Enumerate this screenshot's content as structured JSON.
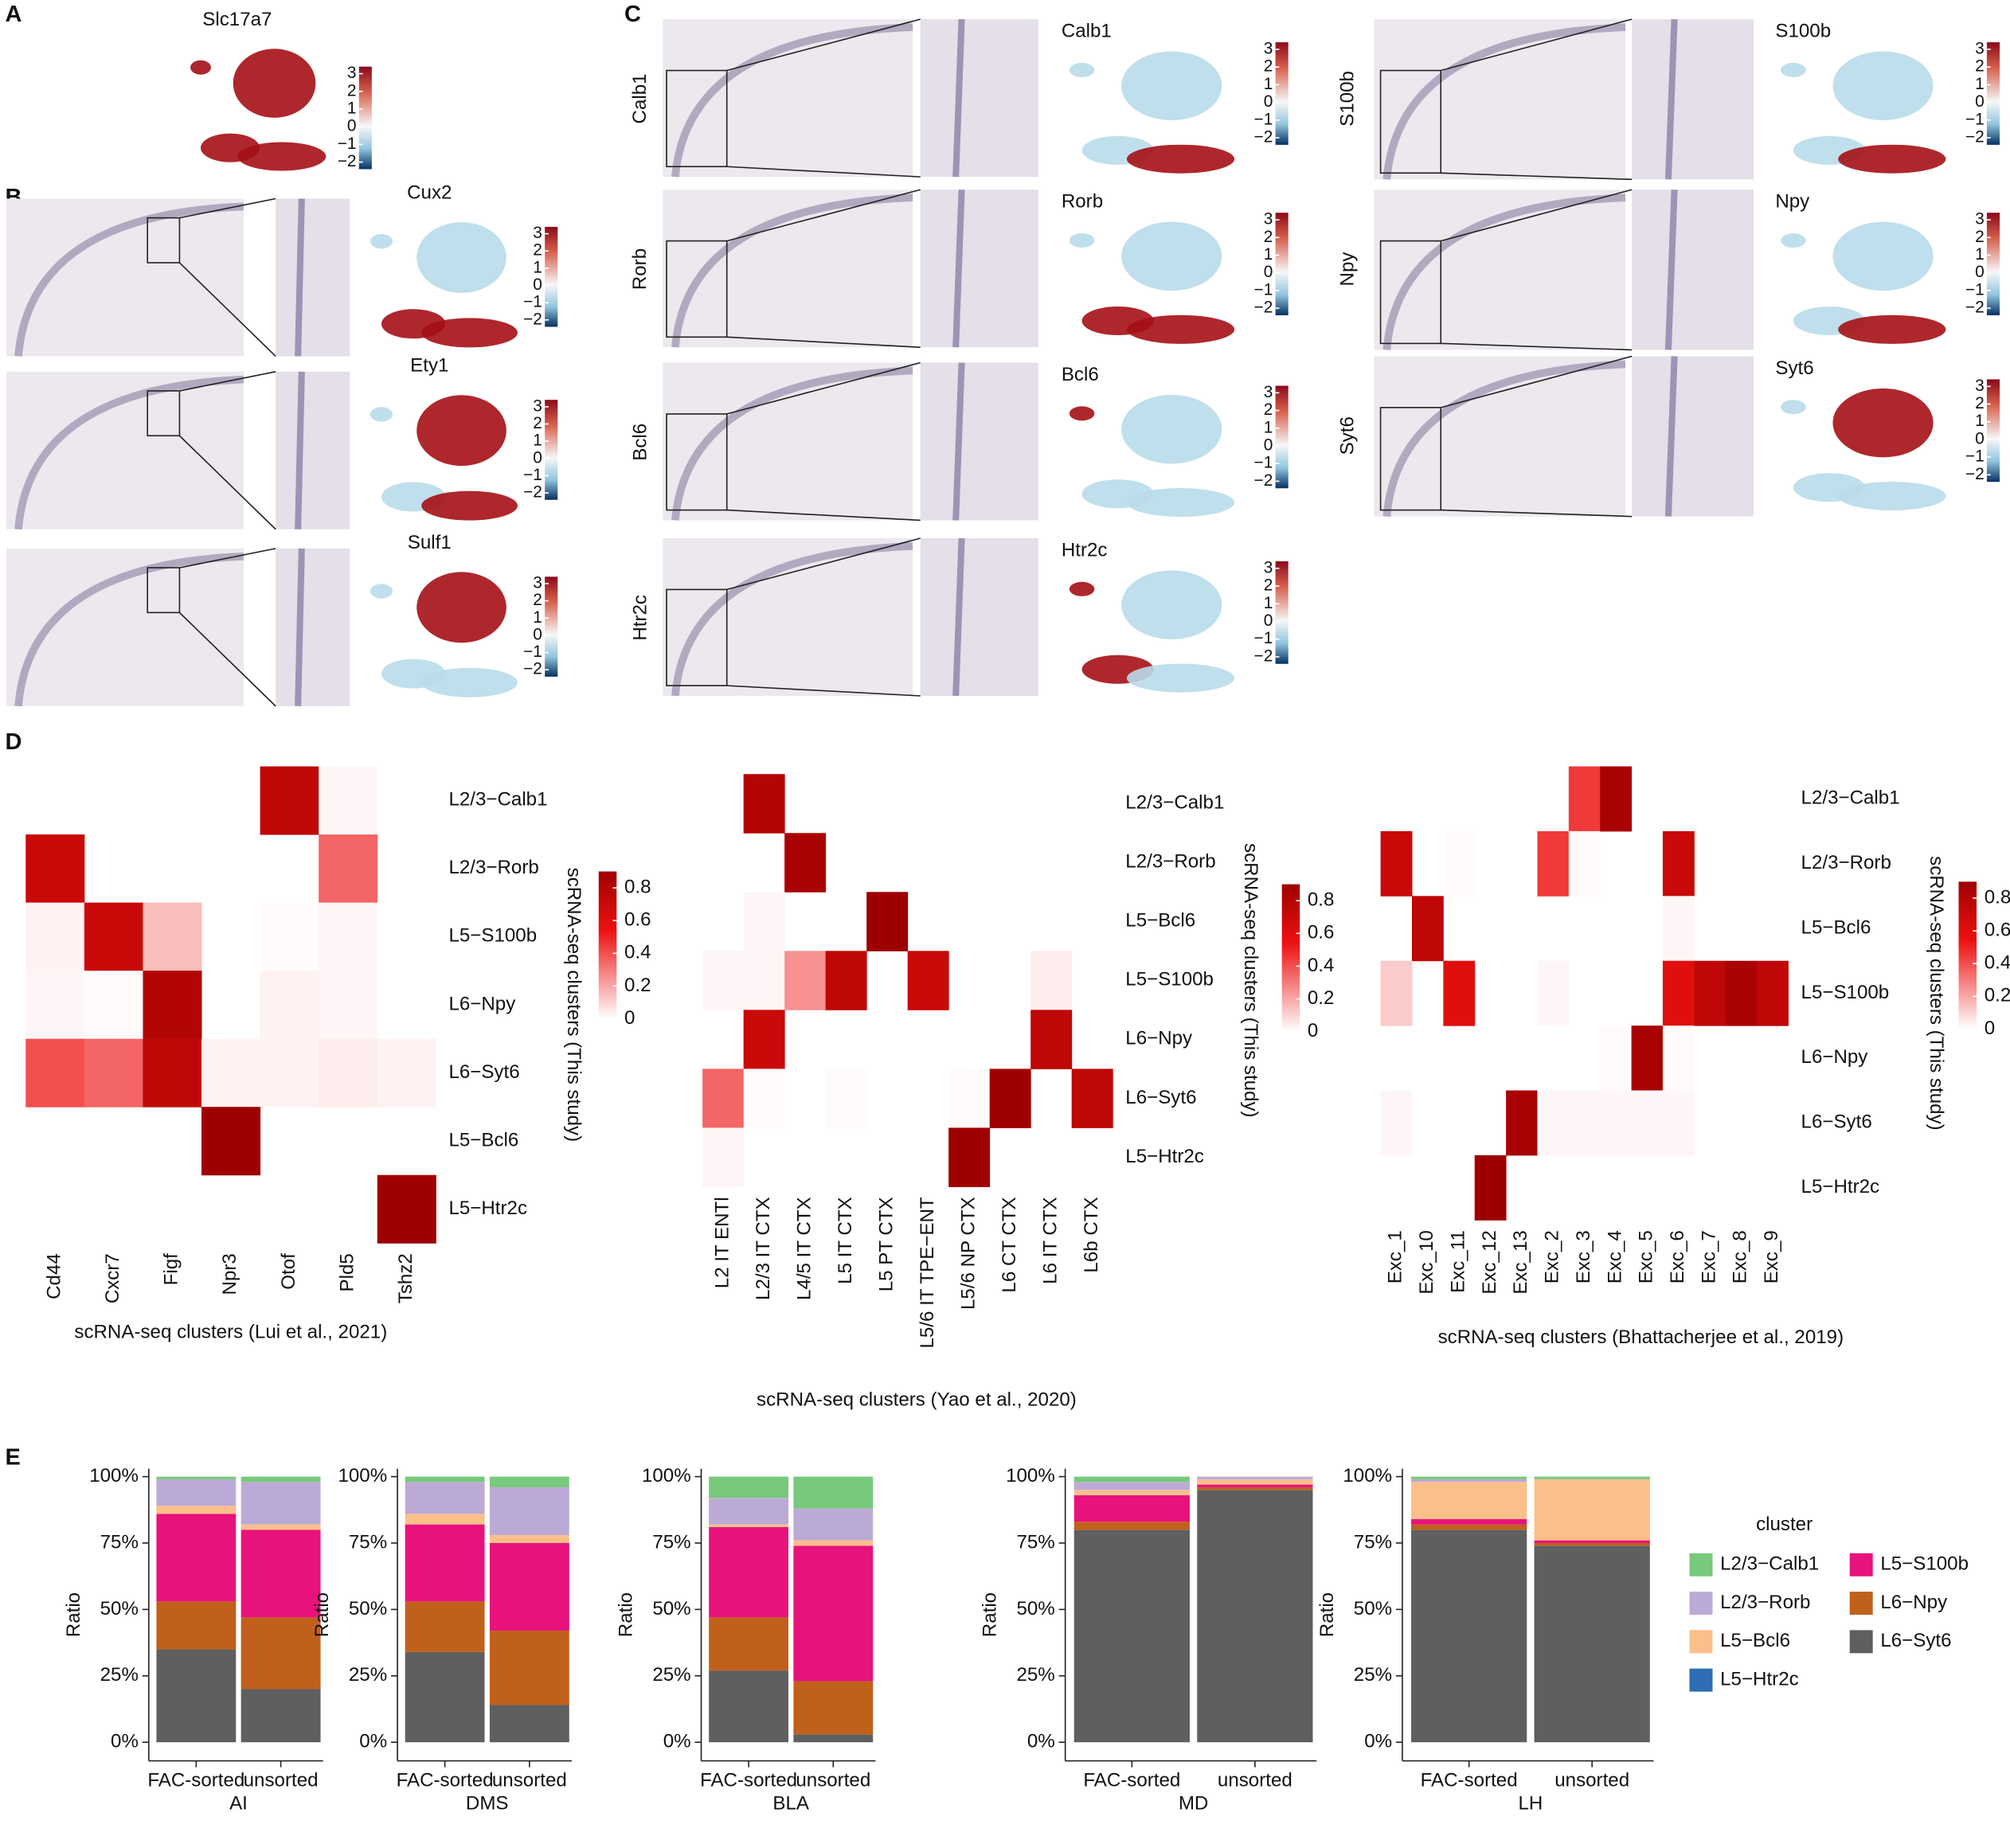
{
  "panel_labels": [
    "A",
    "B",
    "C",
    "D",
    "E"
  ],
  "umap_scale_ticks": [
    3,
    2,
    1,
    0,
    {
      "value": -1,
      "label": "−1"
    },
    {
      "value": -2,
      "label": "−2"
    }
  ],
  "umap_scale_lim": [
    -2.4,
    3.4
  ],
  "panel_a": {
    "genes": [
      "Slc17a7"
    ]
  },
  "panel_b": {
    "genes": [
      "Cux2",
      "Ety1",
      "Sulf1"
    ]
  },
  "panel_c": {
    "genes": [
      "Calb1",
      "Rorb",
      "Bcl6",
      "Htr2c",
      "S100b",
      "Npy",
      "Syt6"
    ]
  },
  "chart_data": [
    {
      "type": "heatmap",
      "x_label": "scRNA-seq clusters (Lui et al., 2021)",
      "y_label": "scRNA-seq clusters (This study)",
      "columns": [
        "Cd44",
        "Cxcr7",
        "Figf",
        "Npr3",
        "Otof",
        "Pld5",
        "Tshz2"
      ],
      "rows": [
        "L2/3−Calb1",
        "L2/3−Rorb",
        "L5−S100b",
        "L6−Npy",
        "L6−Syt6",
        "L5−Bcl6",
        "L5−Htr2c"
      ],
      "values": [
        [
          null,
          null,
          null,
          null,
          0.75,
          0.02,
          null
        ],
        [
          0.7,
          null,
          null,
          null,
          null,
          0.35,
          null
        ],
        [
          0.03,
          0.7,
          0.15,
          null,
          0.01,
          0.02,
          null
        ],
        [
          0.02,
          0.01,
          0.8,
          null,
          0.03,
          0.02,
          null
        ],
        [
          0.4,
          0.35,
          0.75,
          0.03,
          0.03,
          0.04,
          0.03
        ],
        [
          null,
          null,
          null,
          0.9,
          null,
          null,
          null
        ],
        [
          null,
          null,
          null,
          null,
          null,
          null,
          0.9
        ]
      ],
      "zlim": [
        0,
        0.9
      ],
      "colorbar_ticks": [
        0,
        0.2,
        0.4,
        0.6,
        0.8
      ]
    },
    {
      "type": "heatmap",
      "x_label": "scRNA-seq clusters (Yao et al., 2020)",
      "y_label": "scRNA-seq clusters (This study)",
      "columns": [
        "L2 IT ENTl",
        "L2/3 IT CTX",
        "L4/5 IT CTX",
        "L5 IT CTX",
        "L5 PT CTX",
        "L5/6 IT TPE−ENT",
        "L5/6 NP CTX",
        "L6 CT CTX",
        "L6 IT CTX",
        "L6b CTX"
      ],
      "rows": [
        "L2/3−Calb1",
        "L2/3−Rorb",
        "L5−Bcl6",
        "L5−S100b",
        "L6−Npy",
        "L6−Syt6",
        "L5−Htr2c"
      ],
      "values": [
        [
          null,
          0.8,
          null,
          null,
          null,
          null,
          null,
          null,
          null,
          null
        ],
        [
          null,
          null,
          0.85,
          null,
          null,
          null,
          null,
          null,
          null,
          null
        ],
        [
          null,
          0.02,
          null,
          null,
          0.9,
          null,
          null,
          null,
          null,
          null
        ],
        [
          0.02,
          0.02,
          0.25,
          0.75,
          null,
          0.7,
          null,
          null,
          0.04,
          null
        ],
        [
          null,
          0.7,
          null,
          null,
          null,
          null,
          null,
          null,
          0.75,
          null
        ],
        [
          0.35,
          0.01,
          null,
          0.01,
          null,
          null,
          0.01,
          0.9,
          null,
          0.75
        ],
        [
          0.02,
          null,
          null,
          null,
          null,
          null,
          0.9,
          null,
          null,
          null
        ]
      ],
      "zlim": [
        0,
        0.9
      ],
      "colorbar_ticks": [
        0,
        0.2,
        0.4,
        0.6,
        0.8
      ]
    },
    {
      "type": "heatmap",
      "x_label": "scRNA-seq clusters (Bhattacherjee et al., 2019)",
      "y_label": "scRNA-seq clusters (This study)",
      "columns": [
        "Exc_1",
        "Exc_10",
        "Exc_11",
        "Exc_12",
        "Exc_13",
        "Exc_2",
        "Exc_3",
        "Exc_4",
        "Exc_5",
        "Exc_6",
        "Exc_7",
        "Exc_8",
        "Exc_9"
      ],
      "rows": [
        "L2/3−Calb1",
        "L2/3−Rorb",
        "L5−Bcl6",
        "L5−S100b",
        "L6−Npy",
        "L6−Syt6",
        "L5−Htr2c"
      ],
      "values": [
        [
          null,
          null,
          null,
          null,
          null,
          null,
          0.45,
          0.85,
          null,
          null,
          null,
          null,
          null
        ],
        [
          0.7,
          null,
          0.01,
          null,
          null,
          0.45,
          0.01,
          null,
          null,
          0.7,
          null,
          null,
          null
        ],
        [
          null,
          0.75,
          null,
          null,
          null,
          null,
          null,
          null,
          null,
          0.02,
          null,
          null,
          null
        ],
        [
          0.12,
          null,
          0.6,
          null,
          null,
          0.02,
          null,
          null,
          null,
          0.6,
          0.75,
          0.85,
          0.75
        ],
        [
          null,
          null,
          null,
          null,
          null,
          null,
          null,
          0.01,
          0.85,
          0.01,
          null,
          null,
          null
        ],
        [
          0.02,
          null,
          null,
          null,
          0.85,
          0.02,
          0.02,
          0.02,
          0.02,
          0.02,
          null,
          null,
          null
        ],
        [
          null,
          null,
          null,
          0.9,
          null,
          null,
          null,
          null,
          null,
          null,
          null,
          null,
          null
        ]
      ],
      "zlim": [
        0,
        0.9
      ],
      "colorbar_ticks": [
        0,
        0.2,
        0.4,
        0.6,
        0.8
      ]
    },
    {
      "type": "stacked_bar",
      "x_label": "AI",
      "y_label": "Ratio",
      "categories": [
        "FAC-sorted",
        "unsorted"
      ],
      "ylim": [
        -0.07,
        1.03
      ],
      "yticks": [
        {
          "value": 0,
          "label": "0%"
        },
        {
          "value": 0.25,
          "label": "25%"
        },
        {
          "value": 0.5,
          "label": "50%"
        },
        {
          "value": 0.75,
          "label": "75%"
        },
        {
          "value": 1,
          "label": "100%"
        }
      ],
      "legend_title": "cluster",
      "series": [
        {
          "name": "L2/3−Calb1",
          "color": "#77c97b",
          "values": [
            0.01,
            0.02
          ]
        },
        {
          "name": "L2/3−Rorb",
          "color": "#bcaad6",
          "values": [
            0.1,
            0.16
          ]
        },
        {
          "name": "L5−Bcl6",
          "color": "#fbbf8a",
          "values": [
            0.03,
            0.02
          ]
        },
        {
          "name": "L5−Htr2c",
          "color": "#2e6db4",
          "values": [
            0,
            0
          ]
        },
        {
          "name": "L5−S100b",
          "color": "#e8127c",
          "values": [
            0.33,
            0.33
          ]
        },
        {
          "name": "L6−Npy",
          "color": "#c0601b",
          "values": [
            0.18,
            0.27
          ]
        },
        {
          "name": "L6−Syt6",
          "color": "#5f5f5f",
          "values": [
            0.35,
            0.2
          ]
        }
      ]
    },
    {
      "type": "stacked_bar",
      "x_label": "DMS",
      "y_label": "Ratio",
      "categories": [
        "FAC-sorted",
        "unsorted"
      ],
      "ylim": [
        -0.07,
        1.03
      ],
      "yticks": [
        {
          "value": 0,
          "label": "0%"
        },
        {
          "value": 0.25,
          "label": "25%"
        },
        {
          "value": 0.5,
          "label": "50%"
        },
        {
          "value": 0.75,
          "label": "75%"
        },
        {
          "value": 1,
          "label": "100%"
        }
      ],
      "series": [
        {
          "name": "L2/3−Calb1",
          "color": "#77c97b",
          "values": [
            0.02,
            0.04
          ]
        },
        {
          "name": "L2/3−Rorb",
          "color": "#bcaad6",
          "values": [
            0.12,
            0.18
          ]
        },
        {
          "name": "L5−Bcl6",
          "color": "#fbbf8a",
          "values": [
            0.04,
            0.03
          ]
        },
        {
          "name": "L5−Htr2c",
          "color": "#2e6db4",
          "values": [
            0,
            0
          ]
        },
        {
          "name": "L5−S100b",
          "color": "#e8127c",
          "values": [
            0.29,
            0.33
          ]
        },
        {
          "name": "L6−Npy",
          "color": "#c0601b",
          "values": [
            0.19,
            0.28
          ]
        },
        {
          "name": "L6−Syt6",
          "color": "#5f5f5f",
          "values": [
            0.34,
            0.14
          ]
        }
      ]
    },
    {
      "type": "stacked_bar",
      "x_label": "BLA",
      "y_label": "Ratio",
      "categories": [
        "FAC-sorted",
        "unsorted"
      ],
      "ylim": [
        -0.07,
        1.03
      ],
      "yticks": [
        {
          "value": 0,
          "label": "0%"
        },
        {
          "value": 0.25,
          "label": "25%"
        },
        {
          "value": 0.5,
          "label": "50%"
        },
        {
          "value": 0.75,
          "label": "75%"
        },
        {
          "value": 1,
          "label": "100%"
        }
      ],
      "series": [
        {
          "name": "L2/3−Calb1",
          "color": "#77c97b",
          "values": [
            0.08,
            0.12
          ]
        },
        {
          "name": "L2/3−Rorb",
          "color": "#bcaad6",
          "values": [
            0.1,
            0.12
          ]
        },
        {
          "name": "L5−Bcl6",
          "color": "#fbbf8a",
          "values": [
            0.01,
            0.02
          ]
        },
        {
          "name": "L5−Htr2c",
          "color": "#2e6db4",
          "values": [
            0,
            0
          ]
        },
        {
          "name": "L5−S100b",
          "color": "#e8127c",
          "values": [
            0.34,
            0.51
          ]
        },
        {
          "name": "L6−Npy",
          "color": "#c0601b",
          "values": [
            0.2,
            0.2
          ]
        },
        {
          "name": "L6−Syt6",
          "color": "#5f5f5f",
          "values": [
            0.27,
            0.03
          ]
        }
      ]
    },
    {
      "type": "stacked_bar",
      "x_label": "MD",
      "y_label": "Ratio",
      "categories": [
        "FAC-sorted",
        "unsorted"
      ],
      "ylim": [
        -0.07,
        1.03
      ],
      "yticks": [
        {
          "value": 0,
          "label": "0%"
        },
        {
          "value": 0.25,
          "label": "25%"
        },
        {
          "value": 0.5,
          "label": "50%"
        },
        {
          "value": 0.75,
          "label": "75%"
        },
        {
          "value": 1,
          "label": "100%"
        }
      ],
      "series": [
        {
          "name": "L2/3−Calb1",
          "color": "#77c97b",
          "values": [
            0.02,
            0
          ]
        },
        {
          "name": "L2/3−Rorb",
          "color": "#bcaad6",
          "values": [
            0.03,
            0.01
          ]
        },
        {
          "name": "L5−Bcl6",
          "color": "#fbbf8a",
          "values": [
            0.02,
            0.02
          ]
        },
        {
          "name": "L5−Htr2c",
          "color": "#2e6db4",
          "values": [
            0,
            0
          ]
        },
        {
          "name": "L5−S100b",
          "color": "#e8127c",
          "values": [
            0.1,
            0.01
          ]
        },
        {
          "name": "L6−Npy",
          "color": "#c0601b",
          "values": [
            0.03,
            0.01
          ]
        },
        {
          "name": "L6−Syt6",
          "color": "#5f5f5f",
          "values": [
            0.8,
            0.95
          ]
        }
      ]
    },
    {
      "type": "stacked_bar",
      "x_label": "LH",
      "y_label": "Ratio",
      "categories": [
        "FAC-sorted",
        "unsorted"
      ],
      "ylim": [
        -0.07,
        1.03
      ],
      "yticks": [
        {
          "value": 0,
          "label": "0%"
        },
        {
          "value": 0.25,
          "label": "25%"
        },
        {
          "value": 0.5,
          "label": "50%"
        },
        {
          "value": 0.75,
          "label": "75%"
        },
        {
          "value": 1,
          "label": "100%"
        }
      ],
      "series": [
        {
          "name": "L2/3−Calb1",
          "color": "#77c97b",
          "values": [
            0.01,
            0.01
          ]
        },
        {
          "name": "L2/3−Rorb",
          "color": "#bcaad6",
          "values": [
            0.01,
            0
          ]
        },
        {
          "name": "L5−Bcl6",
          "color": "#fbbf8a",
          "values": [
            0.14,
            0.23
          ]
        },
        {
          "name": "L5−Htr2c",
          "color": "#2e6db4",
          "values": [
            0,
            0
          ]
        },
        {
          "name": "L5−S100b",
          "color": "#e8127c",
          "values": [
            0.02,
            0.01
          ]
        },
        {
          "name": "L6−Npy",
          "color": "#c0601b",
          "values": [
            0.02,
            0.01
          ]
        },
        {
          "name": "L6−Syt6",
          "color": "#5f5f5f",
          "values": [
            0.8,
            0.74
          ]
        }
      ]
    }
  ]
}
